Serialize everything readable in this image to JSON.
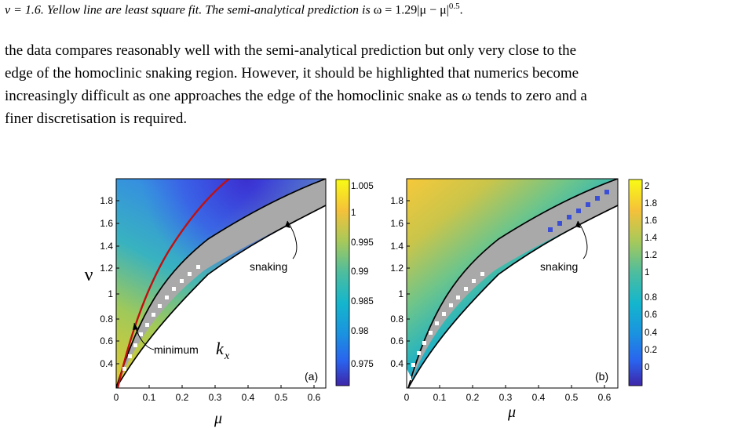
{
  "caption_line": {
    "part1": "ν = 1.6. ",
    "part2": "Yellow line are least square fit. The semi-analytical prediction is ",
    "formula": "ω = 1.29|μ − μ|",
    "exponent": "0.5",
    "end": "."
  },
  "paragraph": [
    "the data compares reasonably well with the semi-analytical prediction but only very close to the",
    "edge of the homoclinic snaking region.  However, it should be highlighted that numerics become",
    "increasingly difficult as one approaches the edge of the homoclinic snake as ω tends to zero and a",
    "finer discretisation is required."
  ],
  "panel_a": {
    "label": "(a)",
    "xlabel": "μ",
    "ylabel": "ν",
    "snaking_label": "snaking",
    "minimum_label": "minimum",
    "minimum_symbol": "k",
    "minimum_sub": "x",
    "xticks": [
      "0",
      "0.1",
      "0.2",
      "0.3",
      "0.4",
      "0.5",
      "0.6"
    ],
    "yticks": [
      "0.4",
      "0.6",
      "0.8",
      "1",
      "1.2",
      "1.4",
      "1.6",
      "1.8"
    ],
    "colorbar_ticks": [
      "1.005",
      "1",
      "0.995",
      "0.99",
      "0.985",
      "0.98",
      "0.975"
    ]
  },
  "panel_b": {
    "label": "(b)",
    "xlabel": "μ",
    "snaking_label": "snaking",
    "xticks": [
      "0",
      "0.1",
      "0.2",
      "0.3",
      "0.4",
      "0.5",
      "0.6"
    ],
    "yticks": [
      "0.4",
      "0.6",
      "0.8",
      "1",
      "1.2",
      "1.4",
      "1.6",
      "1.8"
    ],
    "colorbar_ticks": [
      "2",
      "1.8",
      "1.6",
      "1.4",
      "1.2",
      "1",
      "0.8",
      "0.6",
      "0.4",
      "0.2",
      "0"
    ]
  },
  "colors": {
    "parula_dark": "#3e26a8",
    "parula_blue": "#2a6ff0",
    "parula_cyan": "#16b9c6",
    "parula_green": "#8dc86b",
    "parula_yellow": "#f9fb15",
    "min_curve": "#c01010",
    "snaking_band": "#a9a9a9"
  }
}
